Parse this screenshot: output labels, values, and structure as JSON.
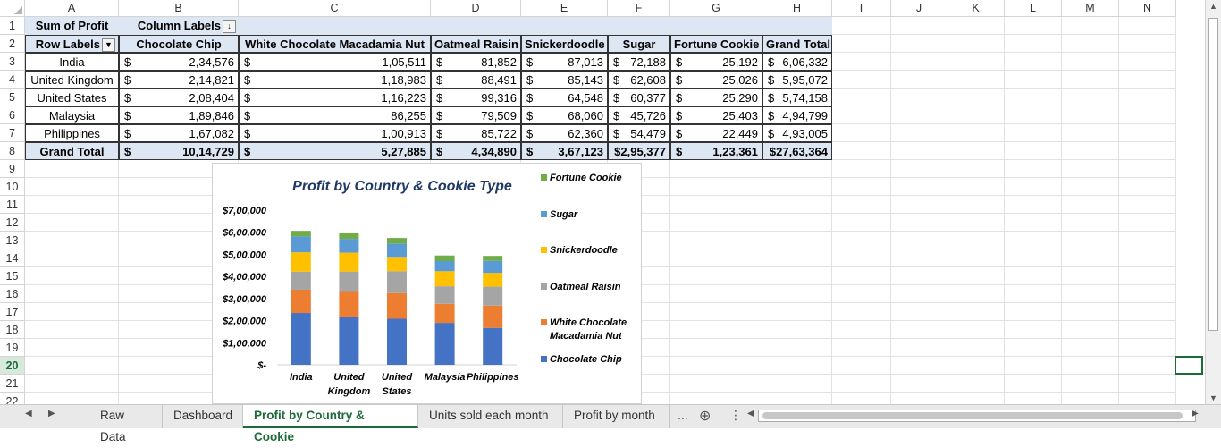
{
  "columns": [
    "A",
    "B",
    "C",
    "D",
    "E",
    "F",
    "G",
    "H",
    "I",
    "J",
    "K",
    "L",
    "M",
    "N"
  ],
  "rows": [
    "1",
    "2",
    "3",
    "4",
    "5",
    "6",
    "7",
    "8",
    "9",
    "10",
    "11",
    "12",
    "13",
    "14",
    "15",
    "16",
    "17",
    "18",
    "19",
    "20",
    "21",
    "22"
  ],
  "pivot": {
    "value_label": "Sum of Profit",
    "column_labels": "Column Labels",
    "row_labels": "Row Labels",
    "headers": [
      "Chocolate Chip",
      "White Chocolate Macadamia Nut",
      "Oatmeal Raisin",
      "Snickerdoodle",
      "Sugar",
      "Fortune Cookie",
      "Grand Total"
    ],
    "currency": "$",
    "body": [
      {
        "country": "India",
        "values": [
          "2,34,576",
          "1,05,511",
          "81,852",
          "87,013",
          "72,188",
          "25,192",
          "6,06,332"
        ]
      },
      {
        "country": "United Kingdom",
        "values": [
          "2,14,821",
          "1,18,983",
          "88,491",
          "85,143",
          "62,608",
          "25,026",
          "5,95,072"
        ]
      },
      {
        "country": "United States",
        "values": [
          "2,08,404",
          "1,16,223",
          "99,316",
          "64,548",
          "60,377",
          "25,290",
          "5,74,158"
        ]
      },
      {
        "country": "Malaysia",
        "values": [
          "1,89,846",
          "86,255",
          "79,509",
          "68,060",
          "45,726",
          "25,403",
          "4,94,799"
        ]
      },
      {
        "country": "Philippines",
        "values": [
          "1,67,082",
          "1,00,913",
          "85,722",
          "62,360",
          "54,479",
          "22,449",
          "4,93,005"
        ]
      }
    ],
    "total": {
      "label": "Grand Total",
      "values": [
        "10,14,729",
        "5,27,885",
        "4,34,890",
        "3,67,123",
        "$2,95,377",
        "1,23,361",
        "$27,63,364"
      ]
    }
  },
  "chart_data": {
    "type": "bar",
    "stacked": true,
    "title": "Profit by Country & Cookie Type",
    "categories": [
      "India",
      "United Kingdom",
      "United States",
      "Malaysia",
      "Philippines"
    ],
    "category_lines": [
      [
        "India"
      ],
      [
        "United",
        "Kingdom"
      ],
      [
        "United",
        "States"
      ],
      [
        "Malaysia"
      ],
      [
        "Philippines"
      ]
    ],
    "ylim": [
      0,
      700000
    ],
    "yticks": [
      0,
      100000,
      200000,
      300000,
      400000,
      500000,
      600000,
      700000
    ],
    "ytick_labels": [
      "$-",
      "$1,00,000",
      "$2,00,000",
      "$3,00,000",
      "$4,00,000",
      "$5,00,000",
      "$6,00,000",
      "$7,00,000"
    ],
    "grid": false,
    "legend_position": "right",
    "series": [
      {
        "name": "Chocolate Chip",
        "color": "#4472c4",
        "values": [
          234576,
          214821,
          208404,
          189846,
          167082
        ]
      },
      {
        "name": "White Chocolate Macadamia Nut",
        "color": "#ed7d31",
        "values": [
          105511,
          118983,
          116223,
          86255,
          100913
        ]
      },
      {
        "name": "Oatmeal Raisin",
        "color": "#a5a5a5",
        "values": [
          81852,
          88491,
          99316,
          79509,
          85722
        ]
      },
      {
        "name": "Snickerdoodle",
        "color": "#ffc000",
        "values": [
          87013,
          85143,
          64548,
          68060,
          62360
        ]
      },
      {
        "name": "Sugar",
        "color": "#5b9bd5",
        "values": [
          72188,
          62608,
          60377,
          45726,
          54479
        ]
      },
      {
        "name": "Fortune Cookie",
        "color": "#70ad47",
        "values": [
          25192,
          25026,
          25290,
          25403,
          22449
        ]
      }
    ],
    "legend_lines": [
      [
        "Fortune Cookie"
      ],
      [
        "Sugar"
      ],
      [
        "Snickerdoodle"
      ],
      [
        "Oatmeal Raisin"
      ],
      [
        "White Chocolate",
        "Macadamia Nut"
      ],
      [
        "Chocolate Chip"
      ]
    ]
  },
  "tabs": [
    "Raw Data",
    "Dashboard",
    "Profit by Country & Cookie",
    "Units sold each month",
    "Profit by month"
  ],
  "active_tab": "Profit by Country & Cookie",
  "tab_overflow": "...",
  "colors": {
    "accent": "#1e6b3a",
    "title": "#1f3864"
  }
}
